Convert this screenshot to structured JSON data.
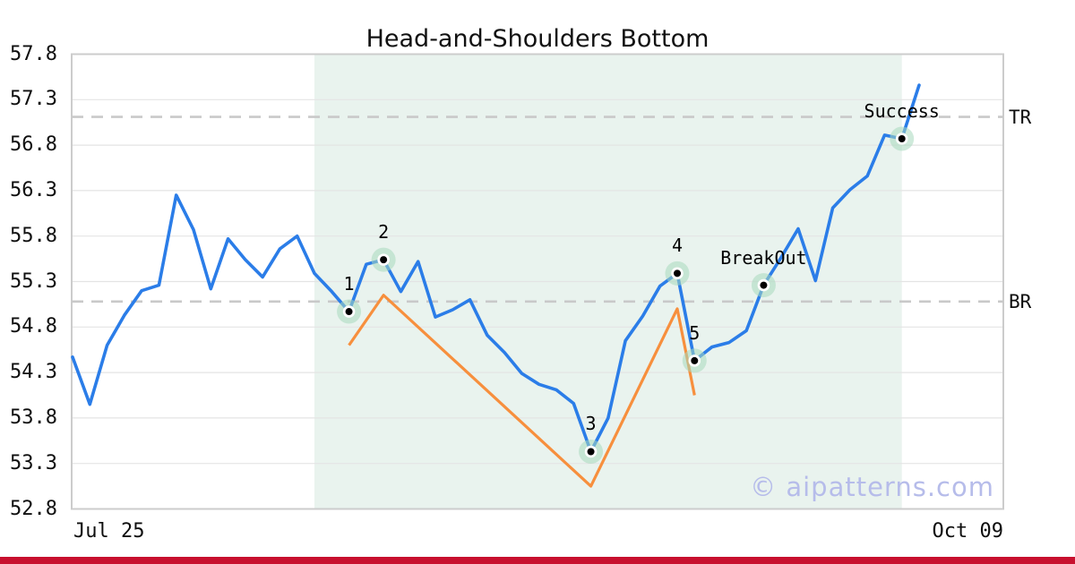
{
  "title": "Head-and-Shoulders Bottom",
  "watermark": "© aipatterns.com",
  "x_axis": {
    "left_label": "Jul 25",
    "right_label": "Oct 09"
  },
  "y_axis": {
    "tick_labels": [
      "57.8",
      "57.3",
      "56.8",
      "56.3",
      "55.8",
      "55.3",
      "54.8",
      "54.3",
      "53.8",
      "53.3",
      "52.8"
    ],
    "tick_values": [
      57.8,
      57.3,
      56.8,
      56.3,
      55.8,
      55.3,
      54.8,
      54.3,
      53.8,
      53.3,
      52.8
    ]
  },
  "levels": [
    {
      "name": "target-line",
      "label": "TR",
      "value": 57.11
    },
    {
      "name": "breakout-line",
      "label": "BR",
      "value": 55.08
    }
  ],
  "chart_data": {
    "type": "line",
    "title": "Head-and-Shoulders Bottom",
    "ylim": [
      52.8,
      57.8
    ],
    "x_range_labels": [
      "Jul 25",
      "Oct 09"
    ],
    "grid": "horizontal-only",
    "series": [
      {
        "name": "price",
        "color": "#2b7de8",
        "values": [
          54.47,
          53.95,
          54.6,
          54.93,
          55.2,
          55.26,
          56.25,
          55.87,
          55.22,
          55.77,
          55.54,
          55.35,
          55.66,
          55.8,
          55.39,
          55.19,
          54.97,
          55.49,
          55.54,
          55.19,
          55.52,
          54.91,
          54.99,
          55.1,
          54.71,
          54.52,
          54.29,
          54.17,
          54.11,
          53.96,
          53.43,
          53.8,
          54.65,
          54.92,
          55.25,
          55.39,
          54.43,
          54.58,
          54.63,
          54.76,
          55.26,
          55.56,
          55.88,
          55.31,
          56.11,
          56.31,
          56.46,
          56.91,
          56.87,
          57.46
        ]
      },
      {
        "name": "pattern-outline",
        "color": "#f78f3d",
        "points": [
          {
            "i": 16,
            "v": 54.6
          },
          {
            "i": 18,
            "v": 55.15
          },
          {
            "i": 30,
            "v": 53.05
          },
          {
            "i": 35,
            "v": 55.0
          },
          {
            "i": 36,
            "v": 54.05
          }
        ]
      }
    ],
    "shaded_region": {
      "from_index": 14,
      "to_index": 48,
      "color": "#e9f3ee"
    },
    "annotations": [
      {
        "label": "1",
        "index": 16,
        "value": 54.97
      },
      {
        "label": "2",
        "index": 18,
        "value": 55.54
      },
      {
        "label": "3",
        "index": 30,
        "value": 53.43
      },
      {
        "label": "4",
        "index": 35,
        "value": 55.39
      },
      {
        "label": "5",
        "index": 36,
        "value": 54.43
      },
      {
        "label": "BreakOut",
        "index": 40,
        "value": 55.26
      },
      {
        "label": "Success",
        "index": 48,
        "value": 56.87
      }
    ]
  },
  "colors": {
    "price_line": "#2b7de8",
    "pattern_line": "#f78f3d",
    "marker_halo": "#a8d8bd",
    "grid": "#e4e4e4",
    "spine": "#cccccc",
    "dashed_level": "#c9c9c9",
    "watermark": "#b6bcea",
    "footer_bar": "#c8102e"
  },
  "footer": {
    "bar_color": "#c8102e"
  }
}
